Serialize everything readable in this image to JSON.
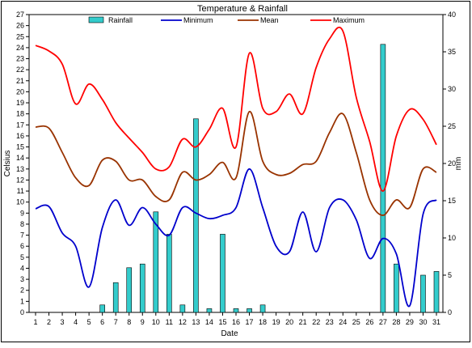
{
  "chart_data": {
    "type": "line",
    "title": "Temperature & Rainfall",
    "xlabel": "Date",
    "ylabel": "Celsius",
    "y2label": "mm",
    "categories": [
      "1",
      "2",
      "3",
      "4",
      "5",
      "6",
      "7",
      "8",
      "9",
      "10",
      "11",
      "12",
      "13",
      "14",
      "15",
      "16",
      "17",
      "18",
      "19",
      "20",
      "21",
      "22",
      "23",
      "24",
      "25",
      "26",
      "27",
      "28",
      "29",
      "30",
      "31"
    ],
    "ylim": [
      0,
      27
    ],
    "y2lim": [
      0,
      40
    ],
    "yticks": [
      "0",
      "1",
      "2",
      "3",
      "4",
      "5",
      "6",
      "7",
      "8",
      "9",
      "10",
      "11",
      "12",
      "13",
      "14",
      "15",
      "16",
      "17",
      "18",
      "19",
      "20",
      "21",
      "22",
      "23",
      "24",
      "25",
      "26",
      "27"
    ],
    "y2ticks": [
      "0",
      "5",
      "10",
      "15",
      "20",
      "25",
      "30",
      "35",
      "40"
    ],
    "legend_position": "top",
    "grid": false,
    "series": [
      {
        "name": "Rainfall",
        "kind": "bar",
        "axis": "right",
        "color": "#33CCCC",
        "values": [
          0,
          0,
          0,
          0,
          0,
          1,
          4,
          6,
          6.5,
          13.5,
          10.5,
          1,
          26,
          0.5,
          10.5,
          0.5,
          0.5,
          1,
          0,
          0,
          0,
          0,
          0,
          0,
          0,
          0,
          36,
          6.5,
          0,
          5,
          5.5
        ]
      },
      {
        "name": "Minimum",
        "kind": "line",
        "axis": "left",
        "color": "#0000CC",
        "values": [
          9.4,
          9.6,
          7.2,
          6,
          2.3,
          7.7,
          10.2,
          7.9,
          9.5,
          8,
          7,
          9.5,
          9,
          8.5,
          8.8,
          9.5,
          13,
          9.5,
          6,
          5.5,
          9.1,
          5.5,
          9.5,
          10.2,
          8.4,
          4.9,
          6.7,
          5.3,
          0.6,
          8.9,
          10.2
        ]
      },
      {
        "name": "Mean",
        "kind": "line",
        "axis": "left",
        "color": "#993300",
        "values": [
          16.8,
          16.7,
          14.5,
          12.2,
          11.5,
          13.8,
          13.7,
          12,
          12,
          10.5,
          10.2,
          12.7,
          12,
          12.5,
          13.6,
          12.2,
          18.2,
          13.7,
          12.5,
          12.6,
          13.4,
          13.7,
          16.3,
          18,
          14.5,
          10.2,
          8.8,
          10.2,
          9.5,
          13,
          12.7
        ]
      },
      {
        "name": "Maximum",
        "kind": "line",
        "axis": "left",
        "color": "#FF0000",
        "values": [
          24.2,
          23.7,
          22.5,
          18.9,
          20.7,
          19.3,
          17.2,
          15.8,
          14.5,
          13,
          13.2,
          15.7,
          15,
          16.6,
          18.5,
          15,
          23.5,
          18.5,
          18.2,
          19.8,
          18,
          22.2,
          24.8,
          25.5,
          19.5,
          15.5,
          11,
          16,
          18.4,
          17.5,
          15.2
        ]
      }
    ]
  }
}
